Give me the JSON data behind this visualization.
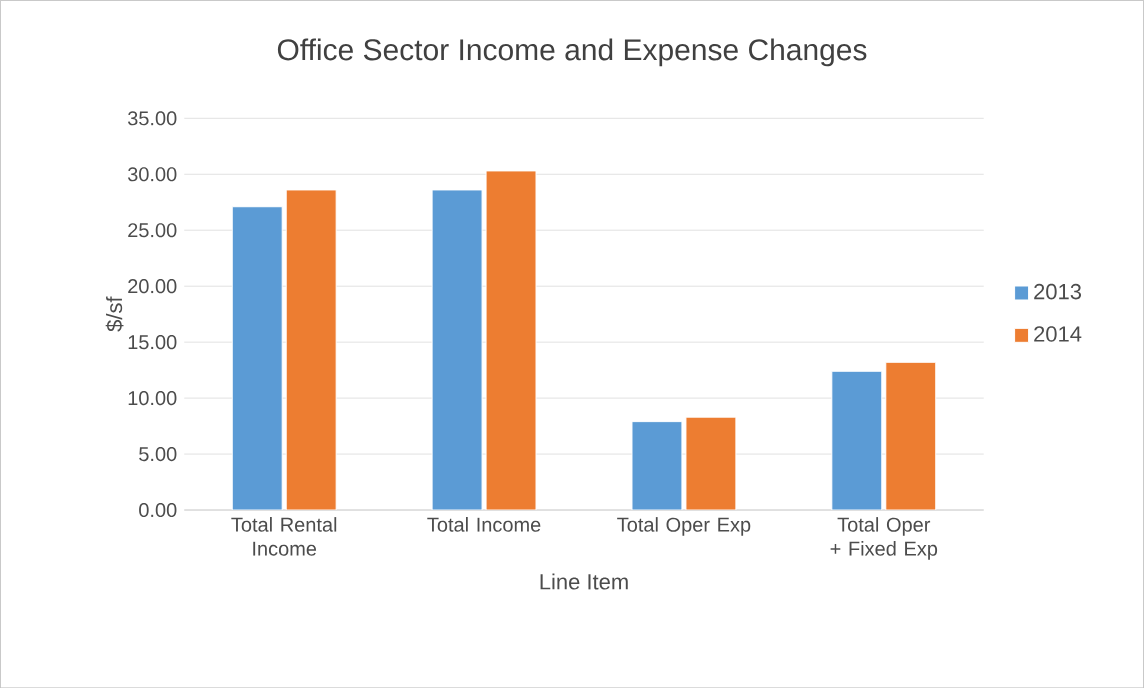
{
  "chart_data": {
    "type": "bar",
    "title": "Office Sector Income and Expense Changes",
    "xlabel": "Line Item",
    "ylabel": "$/sf",
    "categories": [
      "Total Rental Income",
      "Total Income",
      "Total Oper Exp",
      "Total Oper + Fixed Exp"
    ],
    "series": [
      {
        "name": "2013",
        "color": "#5b9bd5",
        "values": [
          27.1,
          28.6,
          7.9,
          12.4
        ]
      },
      {
        "name": "2014",
        "color": "#ed7d31",
        "values": [
          28.6,
          30.3,
          8.3,
          13.2
        ]
      }
    ],
    "ylim": [
      0,
      35
    ],
    "yticks": [
      {
        "value": 0,
        "label": "0.00"
      },
      {
        "value": 5,
        "label": "5.00"
      },
      {
        "value": 10,
        "label": "10.00"
      },
      {
        "value": 15,
        "label": "15.00"
      },
      {
        "value": 20,
        "label": "20.00"
      },
      {
        "value": 25,
        "label": "25.00"
      },
      {
        "value": 30,
        "label": "30.00"
      },
      {
        "value": 35,
        "label": "35.00"
      }
    ],
    "grid": "y",
    "legend": "right"
  }
}
